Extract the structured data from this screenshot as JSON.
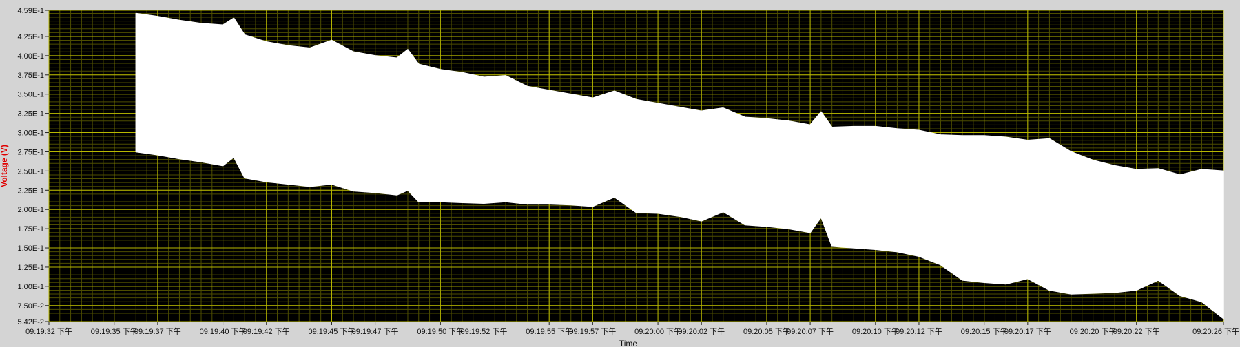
{
  "chart_data": {
    "type": "area",
    "xlabel": "Time",
    "ylabel": "Voltage (V)",
    "ylim": [
      0.0542,
      0.459
    ],
    "y_ticks": [
      "4.59E-1",
      "4.25E-1",
      "4.00E-1",
      "3.75E-1",
      "3.50E-1",
      "3.25E-1",
      "3.00E-1",
      "2.75E-1",
      "2.50E-1",
      "2.25E-1",
      "2.00E-1",
      "1.75E-1",
      "1.50E-1",
      "1.25E-1",
      "1.00E-1",
      "7.50E-2",
      "5.42E-2"
    ],
    "y_tick_values": [
      0.459,
      0.425,
      0.4,
      0.375,
      0.35,
      0.325,
      0.3,
      0.275,
      0.25,
      0.225,
      0.2,
      0.175,
      0.15,
      0.125,
      0.1,
      0.075,
      0.0542
    ],
    "x_ticks": [
      "09:19:32 下午",
      "09:19:35 下午",
      "09:19:37 下午",
      "09:19:40 下午",
      "09:19:42 下午",
      "09:19:45 下午",
      "09:19:47 下午",
      "09:19:50 下午",
      "09:19:52 下午",
      "09:19:55 下午",
      "09:19:57 下午",
      "09:20:00 下午",
      "09:20:02 下午",
      "09:20:05 下午",
      "09:20:07 下午",
      "09:20:10 下午",
      "09:20:12 下午",
      "09:20:15 下午",
      "09:20:17 下午",
      "09:20:20 下午",
      "09:20:22 下午",
      "09:20:26 下午"
    ],
    "grid": true,
    "colors": {
      "plot_background": "#000000",
      "signal": "#ffffff",
      "grid_major": "#b8b800",
      "grid_minor": "#4e4e00",
      "axis_title": "#e00000",
      "frame": "#d4d4d4"
    },
    "series": [
      {
        "x": [
          "09:19:36",
          "09:19:37",
          "09:19:38",
          "09:19:39",
          "09:19:40",
          "09:19:40.5",
          "09:19:41",
          "09:19:42",
          "09:19:43",
          "09:19:44",
          "09:19:45",
          "09:19:46",
          "09:19:47",
          "09:19:48",
          "09:19:48.5",
          "09:19:49",
          "09:19:50",
          "09:19:51",
          "09:19:52",
          "09:19:53",
          "09:19:54",
          "09:19:55",
          "09:19:56",
          "09:19:57",
          "09:19:58",
          "09:19:59",
          "09:20:00",
          "09:20:01",
          "09:20:02",
          "09:20:03",
          "09:20:04",
          "09:20:05",
          "09:20:06",
          "09:20:07",
          "09:20:07.5",
          "09:20:08",
          "09:20:09",
          "09:20:10",
          "09:20:11",
          "09:20:12",
          "09:20:13",
          "09:20:14",
          "09:20:15",
          "09:20:16",
          "09:20:17",
          "09:20:18",
          "09:20:19",
          "09:20:20",
          "09:20:21",
          "09:20:22",
          "09:20:23",
          "09:20:24",
          "09:20:25",
          "09:20:26"
        ],
        "upper": [
          0.455,
          0.451,
          0.446,
          0.442,
          0.44,
          0.449,
          0.427,
          0.418,
          0.413,
          0.41,
          0.42,
          0.405,
          0.4,
          0.397,
          0.408,
          0.389,
          0.382,
          0.378,
          0.372,
          0.374,
          0.36,
          0.355,
          0.35,
          0.345,
          0.354,
          0.343,
          0.338,
          0.333,
          0.328,
          0.332,
          0.32,
          0.318,
          0.315,
          0.31,
          0.327,
          0.307,
          0.308,
          0.308,
          0.305,
          0.303,
          0.297,
          0.296,
          0.296,
          0.294,
          0.29,
          0.292,
          0.275,
          0.264,
          0.257,
          0.252,
          0.253,
          0.245,
          0.252,
          0.25
        ],
        "lower": [
          0.275,
          0.271,
          0.266,
          0.262,
          0.257,
          0.268,
          0.241,
          0.236,
          0.233,
          0.23,
          0.233,
          0.224,
          0.222,
          0.219,
          0.225,
          0.21,
          0.21,
          0.209,
          0.208,
          0.21,
          0.207,
          0.207,
          0.206,
          0.204,
          0.216,
          0.196,
          0.195,
          0.191,
          0.185,
          0.197,
          0.18,
          0.178,
          0.175,
          0.17,
          0.19,
          0.152,
          0.15,
          0.148,
          0.145,
          0.139,
          0.128,
          0.108,
          0.105,
          0.103,
          0.11,
          0.095,
          0.09,
          0.091,
          0.092,
          0.095,
          0.108,
          0.088,
          0.08,
          0.058
        ]
      }
    ]
  }
}
